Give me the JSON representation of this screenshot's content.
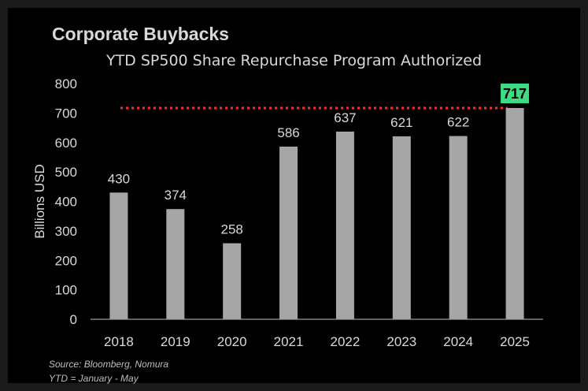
{
  "chart_data": {
    "type": "bar",
    "title": "Corporate Buybacks",
    "subtitle": "YTD SP500 Share Repurchase Program Authorized",
    "xlabel": "",
    "ylabel": "Billions USD",
    "categories": [
      "2018",
      "2019",
      "2020",
      "2021",
      "2022",
      "2023",
      "2024",
      "2025"
    ],
    "values": [
      430,
      374,
      258,
      586,
      637,
      621,
      622,
      717
    ],
    "ylim": [
      0,
      800
    ],
    "yticks": [
      0,
      100,
      200,
      300,
      400,
      500,
      600,
      700,
      800
    ],
    "highlight": {
      "category": "2025",
      "label": "717",
      "color": "#3ddc84"
    },
    "reference_line": {
      "value": 717,
      "style": "dotted",
      "color": "#ff2a2a"
    },
    "grid": false,
    "colors": {
      "bar": "#a6a6a6",
      "background": "#000000",
      "text": "#d9d9d9"
    }
  },
  "footer": {
    "source": "Source: Bloomberg, Nomura",
    "note": "YTD = January - May"
  }
}
